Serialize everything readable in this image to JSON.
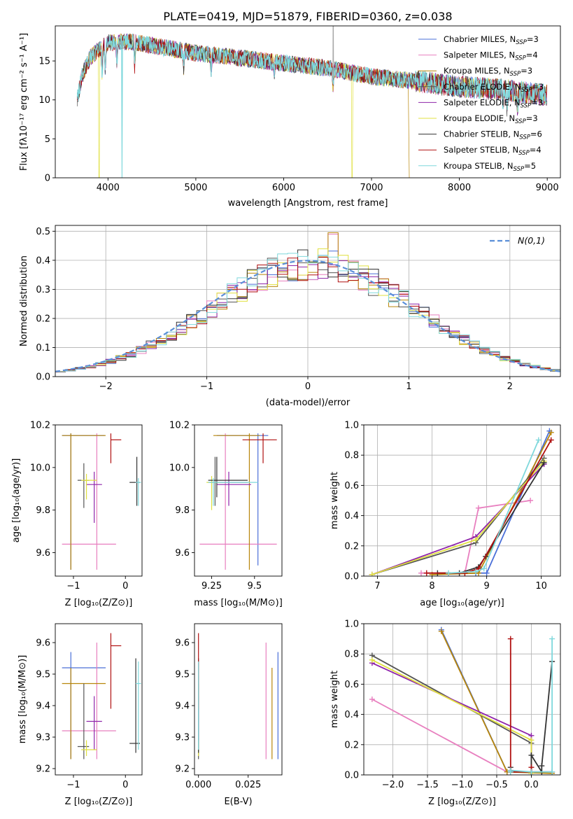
{
  "figure": {
    "title": "PLATE=0419, MJD=51879, FIBERID=0360, z=0.038"
  },
  "models": [
    {
      "name": "Chabrier MILES",
      "nssp": "3",
      "color": "#4a6fd8"
    },
    {
      "name": "Salpeter MILES",
      "nssp": "4",
      "color": "#e87fbf"
    },
    {
      "name": "Kroupa MILES",
      "nssp": "3",
      "color": "#b8860b"
    },
    {
      "name": "Chabrier ELODIE",
      "nssp": "3",
      "color": "#555555"
    },
    {
      "name": "Salpeter ELODIE",
      "nssp": "3",
      "color": "#8e24aa"
    },
    {
      "name": "Kroupa ELODIE",
      "nssp": "3",
      "color": "#e0e040"
    },
    {
      "name": "Chabrier STELIB",
      "nssp": "6",
      "color": "#333333"
    },
    {
      "name": "Salpeter STELIB",
      "nssp": "4",
      "color": "#b01010"
    },
    {
      "name": "Kroupa STELIB",
      "nssp": "5",
      "color": "#7fd8dc"
    }
  ],
  "chart_data": [
    {
      "type": "line",
      "id": "spectrum",
      "xlabel": "wavelength [Angstrom, rest frame]",
      "ylabel": "Flux [f_λ 10^-17 erg cm^-2 s^-1 A^-1]",
      "xlim": [
        3400,
        9150
      ],
      "ylim": [
        0,
        19.5
      ],
      "xticks": [
        4000,
        5000,
        6000,
        7000,
        8000,
        9000
      ],
      "yticks": [
        0,
        5,
        10,
        15
      ],
      "legend": "top-right",
      "continuum": {
        "x": [
          3650,
          3700,
          3800,
          3900,
          4000,
          4100,
          4300,
          4500,
          5000,
          5500,
          6000,
          6500,
          7000,
          7500,
          8000,
          8500,
          9000
        ],
        "y": [
          10.0,
          13.0,
          15.5,
          16.5,
          17.3,
          17.5,
          17.4,
          17.0,
          16.0,
          15.4,
          14.7,
          14.1,
          13.0,
          12.4,
          11.7,
          11.3,
          10.6
        ]
      }
    },
    {
      "type": "line",
      "id": "residuals",
      "xlabel": "(data-model)/error",
      "ylabel": "Normed distribution",
      "xlim": [
        -2.5,
        2.5
      ],
      "ylim": [
        0,
        0.52
      ],
      "xticks": [
        -2,
        -1,
        0,
        1,
        2
      ],
      "yticks": [
        0.0,
        0.1,
        0.2,
        0.3,
        0.4,
        0.5
      ],
      "grid": true,
      "legend": "top-right",
      "reference_label": "N(0,1)",
      "reference_color": "#5b8fd8",
      "bins": [
        -2.5,
        -2.4,
        -2.3,
        -2.2,
        -2.1,
        -2.0,
        -1.9,
        -1.8,
        -1.7,
        -1.6,
        -1.5,
        -1.4,
        -1.3,
        -1.2,
        -1.1,
        -1.0,
        -0.9,
        -0.8,
        -0.7,
        -0.6,
        -0.5,
        -0.4,
        -0.3,
        -0.2,
        -0.1,
        0.0,
        0.1,
        0.2,
        0.3,
        0.4,
        0.5,
        0.6,
        0.7,
        0.8,
        0.9,
        1.0,
        1.1,
        1.2,
        1.3,
        1.4,
        1.5,
        1.6,
        1.7,
        1.8,
        1.9,
        2.0,
        2.1,
        2.2,
        2.3,
        2.4
      ]
    },
    {
      "type": "scatter",
      "id": "age-vs-z",
      "xlabel": "Z [log10(Z/Z☉)]",
      "ylabel": "age [log10(age/yr)]",
      "xlim": [
        -1.35,
        0.32
      ],
      "ylim": [
        9.49,
        10.2
      ],
      "xticks": [
        -1,
        0
      ],
      "yticks": [
        9.6,
        9.8,
        10.0,
        10.2
      ],
      "points": [
        {
          "m": 0,
          "x": -1.05,
          "xe": [
            -1.22,
            -0.4
          ],
          "y": 10.15,
          "ye": [
            9.52,
            10.16
          ]
        },
        {
          "m": 1,
          "x": -0.55,
          "xe": [
            -1.22,
            -0.18
          ],
          "y": 9.64,
          "ye": [
            9.52,
            10.16
          ]
        },
        {
          "m": 2,
          "x": -1.05,
          "xe": [
            -1.22,
            -0.38
          ],
          "y": 10.15,
          "ye": [
            9.52,
            10.16
          ]
        },
        {
          "m": 3,
          "x": -0.8,
          "xe": [
            -0.92,
            -0.7
          ],
          "y": 9.94,
          "ye": [
            9.81,
            10.02
          ]
        },
        {
          "m": 4,
          "x": -0.6,
          "xe": [
            -0.75,
            -0.45
          ],
          "y": 9.92,
          "ye": [
            9.74,
            9.98
          ]
        },
        {
          "m": 5,
          "x": -0.75,
          "xe": [
            -0.85,
            -0.55
          ],
          "y": 9.94,
          "ye": [
            9.85,
            9.97
          ]
        },
        {
          "m": 6,
          "x": 0.22,
          "xe": [
            0.08,
            0.28
          ],
          "y": 9.93,
          "ye": [
            9.82,
            10.05
          ]
        },
        {
          "m": 7,
          "x": -0.28,
          "xe": [
            -0.28,
            -0.08
          ],
          "y": 10.13,
          "ye": [
            10.02,
            10.16
          ]
        },
        {
          "m": 8,
          "x": 0.25,
          "xe": [
            0.2,
            0.3
          ],
          "y": 9.93,
          "ye": [
            9.82,
            9.95
          ]
        }
      ]
    },
    {
      "type": "scatter",
      "id": "age-vs-mass",
      "xlabel": "mass [log10(M/M☉)]",
      "ylabel": "",
      "xlim": [
        9.15,
        9.66
      ],
      "ylim": [
        9.49,
        10.2
      ],
      "xticks": [
        9.25,
        9.5
      ],
      "yticks": [
        9.6,
        9.8,
        10.0,
        10.2
      ],
      "points": [
        {
          "m": 0,
          "x": 9.52,
          "xe": [
            9.28,
            9.58
          ],
          "y": 10.15,
          "ye": [
            9.54,
            10.16
          ]
        },
        {
          "m": 1,
          "x": 9.33,
          "xe": [
            9.18,
            9.63
          ],
          "y": 9.64,
          "ye": [
            9.52,
            10.16
          ]
        },
        {
          "m": 2,
          "x": 9.47,
          "xe": [
            9.26,
            9.53
          ],
          "y": 10.15,
          "ye": [
            9.52,
            10.16
          ]
        },
        {
          "m": 3,
          "x": 9.27,
          "xe": [
            9.23,
            9.46
          ],
          "y": 9.93,
          "ye": [
            9.82,
            10.05
          ]
        },
        {
          "m": 4,
          "x": 9.35,
          "xe": [
            9.28,
            9.48
          ],
          "y": 9.92,
          "ye": [
            9.82,
            9.98
          ]
        },
        {
          "m": 5,
          "x": 9.25,
          "xe": [
            9.22,
            9.3
          ],
          "y": 9.93,
          "ye": [
            9.8,
            9.96
          ]
        },
        {
          "m": 6,
          "x": 9.28,
          "xe": [
            9.23,
            9.46
          ],
          "y": 9.94,
          "ye": [
            9.86,
            10.05
          ]
        },
        {
          "m": 7,
          "x": 9.55,
          "xe": [
            9.43,
            9.63
          ],
          "y": 10.13,
          "ye": [
            10.02,
            10.16
          ]
        },
        {
          "m": 8,
          "x": 9.26,
          "xe": [
            9.23,
            9.52
          ],
          "y": 9.93,
          "ye": [
            9.82,
            9.95
          ]
        }
      ]
    },
    {
      "type": "line",
      "id": "weight-vs-age",
      "xlabel": "age [log10(age/yr)]",
      "ylabel": "mass weight",
      "xlim": [
        6.75,
        10.35
      ],
      "ylim": [
        0,
        1
      ],
      "xticks": [
        7,
        8,
        9,
        10
      ],
      "yticks": [
        0.0,
        0.2,
        0.4,
        0.6,
        0.8,
        1.0
      ],
      "grid": true,
      "series": [
        {
          "m": 0,
          "x": [
            8.8,
            9.0,
            10.15
          ],
          "y": [
            0.02,
            0.02,
            0.96
          ]
        },
        {
          "m": 1,
          "x": [
            7.8,
            8.6,
            8.85,
            9.8
          ],
          "y": [
            0.02,
            0.02,
            0.45,
            0.5
          ]
        },
        {
          "m": 2,
          "x": [
            8.0,
            8.85,
            10.18
          ],
          "y": [
            0.01,
            0.02,
            0.95
          ]
        },
        {
          "m": 3,
          "x": [
            6.9,
            8.8,
            10.05
          ],
          "y": [
            0.01,
            0.22,
            0.78
          ]
        },
        {
          "m": 4,
          "x": [
            6.9,
            8.8,
            10.05
          ],
          "y": [
            0.01,
            0.26,
            0.74
          ]
        },
        {
          "m": 5,
          "x": [
            6.9,
            8.8,
            10.05
          ],
          "y": [
            0.01,
            0.24,
            0.76
          ]
        },
        {
          "m": 6,
          "x": [
            8.1,
            8.5,
            8.85,
            8.98,
            10.05
          ],
          "y": [
            0.02,
            0.02,
            0.06,
            0.13,
            0.75
          ]
        },
        {
          "m": 7,
          "x": [
            7.9,
            8.6,
            8.85,
            10.18
          ],
          "y": [
            0.02,
            0.02,
            0.05,
            0.9
          ]
        },
        {
          "m": 8,
          "x": [
            8.3,
            8.8,
            8.95,
            9.95
          ],
          "y": [
            0.02,
            0.03,
            0.05,
            0.9
          ]
        }
      ]
    },
    {
      "type": "scatter",
      "id": "mass-vs-z",
      "xlabel": "Z [log10(Z/Z☉)]",
      "ylabel": "mass [log10(M/M☉)]",
      "xlim": [
        -1.35,
        0.32
      ],
      "ylim": [
        9.18,
        9.66
      ],
      "xticks": [
        -1,
        0
      ],
      "yticks": [
        9.2,
        9.3,
        9.4,
        9.5,
        9.6
      ],
      "points": [
        {
          "m": 0,
          "x": -1.05,
          "xe": [
            -1.22,
            -0.38
          ],
          "y": 9.52,
          "ye": [
            9.23,
            9.57
          ]
        },
        {
          "m": 1,
          "x": -0.55,
          "xe": [
            -1.22,
            -0.18
          ],
          "y": 9.32,
          "ye": [
            9.23,
            9.6
          ]
        },
        {
          "m": 2,
          "x": -1.05,
          "xe": [
            -1.22,
            -0.38
          ],
          "y": 9.47,
          "ye": [
            9.23,
            9.52
          ]
        },
        {
          "m": 3,
          "x": -0.8,
          "xe": [
            -0.92,
            -0.7
          ],
          "y": 9.27,
          "ye": [
            9.23,
            9.47
          ]
        },
        {
          "m": 4,
          "x": -0.6,
          "xe": [
            -0.75,
            -0.45
          ],
          "y": 9.35,
          "ye": [
            9.26,
            9.43
          ]
        },
        {
          "m": 5,
          "x": -0.75,
          "xe": [
            -0.85,
            -0.55
          ],
          "y": 9.26,
          "ye": [
            9.24,
            9.29
          ]
        },
        {
          "m": 6,
          "x": 0.2,
          "xe": [
            0.08,
            0.28
          ],
          "y": 9.28,
          "ye": [
            9.25,
            9.55
          ]
        },
        {
          "m": 7,
          "x": -0.28,
          "xe": [
            -0.28,
            -0.08
          ],
          "y": 9.59,
          "ye": [
            9.39,
            9.63
          ]
        },
        {
          "m": 8,
          "x": 0.25,
          "xe": [
            0.2,
            0.3
          ],
          "y": 9.47,
          "ye": [
            9.26,
            9.54
          ]
        }
      ]
    },
    {
      "type": "scatter",
      "id": "mass-vs-ebv",
      "xlabel": "E(B-V)",
      "ylabel": "",
      "xlim": [
        -0.002,
        0.042
      ],
      "ylim": [
        9.18,
        9.66
      ],
      "xticks": [
        0.0,
        0.025
      ],
      "xtick_labels": [
        "0.000",
        "0.025"
      ],
      "yticks": [
        9.2,
        9.3,
        9.4,
        9.5,
        9.6
      ],
      "points": [
        {
          "m": 0,
          "x": 0.04,
          "xe": [
            0.04,
            0.04
          ],
          "y": 9.4,
          "ye": [
            9.23,
            9.57
          ]
        },
        {
          "m": 1,
          "x": 0.034,
          "xe": [
            0.034,
            0.034
          ],
          "y": 9.4,
          "ye": [
            9.23,
            9.6
          ]
        },
        {
          "m": 2,
          "x": 0.037,
          "xe": [
            0.037,
            0.037
          ],
          "y": 9.38,
          "ye": [
            9.23,
            9.52
          ]
        },
        {
          "m": 3,
          "x": 0.0,
          "xe": [
            0.0,
            0.0
          ],
          "y": 9.35,
          "ye": [
            9.23,
            9.47
          ]
        },
        {
          "m": 4,
          "x": 0.0,
          "xe": [
            0.0,
            0.0
          ],
          "y": 9.35,
          "ye": [
            9.26,
            9.43
          ]
        },
        {
          "m": 5,
          "x": 0.0,
          "xe": [
            0.0,
            0.0
          ],
          "y": 9.26,
          "ye": [
            9.24,
            9.29
          ]
        },
        {
          "m": 6,
          "x": 0.0,
          "xe": [
            0.0,
            0.0
          ],
          "y": 9.4,
          "ye": [
            9.25,
            9.55
          ]
        },
        {
          "m": 7,
          "x": 0.0,
          "xe": [
            0.0,
            0.0
          ],
          "y": 9.5,
          "ye": [
            9.39,
            9.63
          ]
        },
        {
          "m": 8,
          "x": 0.0,
          "xe": [
            0.0,
            0.0
          ],
          "y": 9.4,
          "ye": [
            9.26,
            9.54
          ]
        }
      ]
    },
    {
      "type": "line",
      "id": "weight-vs-z",
      "xlabel": "Z [log10(Z/Z☉)]",
      "ylabel": "mass weight",
      "xlim": [
        -2.42,
        0.42
      ],
      "ylim": [
        0,
        1
      ],
      "xticks": [
        -2.0,
        -1.5,
        -1.0,
        -0.5,
        0.0
      ],
      "xtick_labels": [
        "−2.0",
        "−1.5",
        "−1.0",
        "−0.5",
        "0.0"
      ],
      "yticks": [
        0.0,
        0.2,
        0.4,
        0.6,
        0.8,
        1.0
      ],
      "grid": true,
      "series": [
        {
          "m": 0,
          "x": [
            -1.3,
            -0.35,
            0.3
          ],
          "y": [
            0.96,
            0.02,
            0.02
          ]
        },
        {
          "m": 1,
          "x": [
            -2.3,
            -0.35,
            0.0,
            0.3
          ],
          "y": [
            0.5,
            0.02,
            0.02,
            0.02
          ]
        },
        {
          "m": 2,
          "x": [
            -1.3,
            -0.35,
            0.3
          ],
          "y": [
            0.95,
            0.02,
            0.01
          ]
        },
        {
          "m": 3,
          "x": [
            -2.3,
            0.0,
            0.0
          ],
          "y": [
            0.79,
            0.21,
            0.01
          ]
        },
        {
          "m": 4,
          "x": [
            -2.3,
            0.0,
            0.0
          ],
          "y": [
            0.74,
            0.26,
            0.01
          ]
        },
        {
          "m": 5,
          "x": [
            -2.3,
            0.0,
            0.0
          ],
          "y": [
            0.76,
            0.23,
            0.01
          ]
        },
        {
          "m": 6,
          "x": [
            -0.3,
            -0.3,
            0.0,
            0.0,
            0.15,
            0.15,
            0.3
          ],
          "y": [
            0.05,
            0.02,
            0.02,
            0.13,
            0.02,
            0.06,
            0.75
          ]
        },
        {
          "m": 7,
          "x": [
            -0.3,
            -0.3,
            0.0,
            0.0
          ],
          "y": [
            0.9,
            0.02,
            0.02,
            0.05
          ]
        },
        {
          "m": 8,
          "x": [
            -0.3,
            -0.3,
            0.0,
            0.3,
            0.3
          ],
          "y": [
            0.02,
            0.03,
            0.02,
            0.02,
            0.9
          ]
        }
      ]
    }
  ]
}
